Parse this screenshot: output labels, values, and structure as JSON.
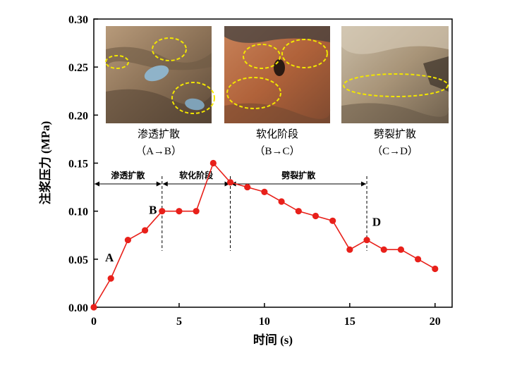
{
  "chart_data": {
    "type": "line",
    "xlabel": "时间 (s)",
    "ylabel": "注浆压力 (MPa)",
    "xlim": [
      0,
      21
    ],
    "ylim": [
      0,
      0.3
    ],
    "x_ticks": [
      0,
      5,
      10,
      15,
      20
    ],
    "y_ticks": [
      0.0,
      0.05,
      0.1,
      0.15,
      0.2,
      0.25,
      0.3
    ],
    "x_tick_labels": [
      "0",
      "5",
      "10",
      "15",
      "20"
    ],
    "y_tick_labels": [
      "0.00",
      "0.05",
      "0.10",
      "0.15",
      "0.20",
      "0.25",
      "0.30"
    ],
    "grid": false,
    "series": [
      {
        "color": "#e8201a",
        "x": [
          0,
          1,
          2,
          3,
          4,
          5,
          6,
          7,
          8,
          9,
          10,
          11,
          12,
          13,
          14,
          15,
          16,
          17,
          18,
          19,
          20
        ],
        "y": [
          0.0,
          0.03,
          0.07,
          0.08,
          0.1,
          0.1,
          0.1,
          0.15,
          0.13,
          0.125,
          0.12,
          0.11,
          0.1,
          0.095,
          0.09,
          0.06,
          0.07,
          0.06,
          0.06,
          0.05,
          0.04
        ]
      }
    ],
    "point_labels": [
      {
        "text": "A",
        "x": 1,
        "y": 0.03
      },
      {
        "text": "B",
        "x": 4,
        "y": 0.1
      },
      {
        "text": "D",
        "x": 16,
        "y": 0.07
      }
    ],
    "phase_dividers": [
      4,
      8,
      16
    ],
    "phases": [
      {
        "label": "渗透扩散",
        "from": 0,
        "to": 4
      },
      {
        "label": "软化阶段",
        "from": 4,
        "to": 8
      },
      {
        "label": "劈裂扩散",
        "from": 8,
        "to": 16
      }
    ],
    "photo_captions": [
      {
        "title": "渗透扩散",
        "range": "（A→B）"
      },
      {
        "title": "软化阶段",
        "range": "（B→C）"
      },
      {
        "title": "劈裂扩散",
        "range": "（C→D）"
      }
    ],
    "colors": {
      "line": "#e8201a",
      "marker": "#e8201a",
      "axis": "#000000",
      "highlight_ellipse": "#f2e600"
    }
  }
}
